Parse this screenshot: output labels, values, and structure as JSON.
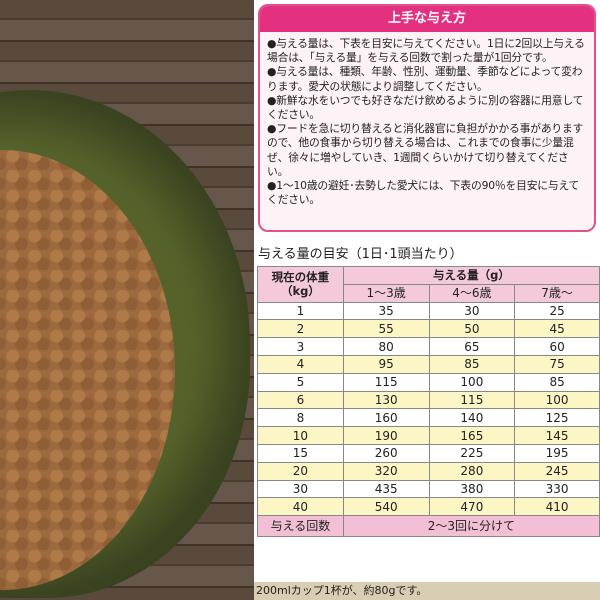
{
  "tips": {
    "title": "上手な与え方",
    "items": [
      "●与える量は、下表を目安に与えてください。1日に2回以上与える場合は、「与える量」を与える回数で割った量が1回分です。",
      "●与える量は、種類、年齢、性別、運動量、季節などによって変わります。愛犬の状態により調整してください。",
      "●新鮮な水をいつでも好きなだけ飲めるように別の容器に用意してください。",
      "●フードを急に切り替えると消化器官に負担がかかる事がありますので、他の食事から切り替える場合は、これまでの食事に少量混ぜ、徐々に増やしていき、1週間くらいかけて切り替えてください。",
      "●1〜10歳の避妊･去勢した愛犬には、下表の90％を目安に与えてください。"
    ]
  },
  "table": {
    "title": "与える量の目安（1日･1頭当たり）",
    "weight_header": "現在の体重",
    "weight_unit": "（kg）",
    "amount_header": "与える量（g）",
    "age_headers": [
      "1〜3歳",
      "4〜6歳",
      "7歳〜"
    ],
    "rows": [
      [
        "1",
        "35",
        "30",
        "25"
      ],
      [
        "2",
        "55",
        "50",
        "45"
      ],
      [
        "3",
        "80",
        "65",
        "60"
      ],
      [
        "4",
        "95",
        "85",
        "75"
      ],
      [
        "5",
        "115",
        "100",
        "85"
      ],
      [
        "6",
        "130",
        "115",
        "100"
      ],
      [
        "8",
        "160",
        "140",
        "125"
      ],
      [
        "10",
        "190",
        "165",
        "145"
      ],
      [
        "15",
        "260",
        "225",
        "195"
      ],
      [
        "20",
        "320",
        "280",
        "245"
      ],
      [
        "30",
        "435",
        "380",
        "330"
      ],
      [
        "40",
        "540",
        "470",
        "410"
      ]
    ],
    "footer_label": "与える回数",
    "footer_value": "2〜3回に分けて"
  },
  "caption": "200mlカップ1杯が、約80gです。",
  "colors": {
    "accent": "#e4317f",
    "row_alt": "#fbf6c4",
    "header_bg": "#f5c9dc"
  }
}
